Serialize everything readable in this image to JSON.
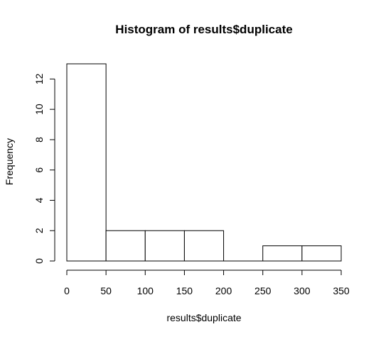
{
  "chart_data": {
    "type": "bar",
    "title": "Histogram of results$duplicate",
    "xlabel": "results$duplicate",
    "ylabel": "Frequency",
    "bins": [
      {
        "start": 0,
        "end": 50,
        "count": 13
      },
      {
        "start": 50,
        "end": 100,
        "count": 2
      },
      {
        "start": 100,
        "end": 150,
        "count": 2
      },
      {
        "start": 150,
        "end": 200,
        "count": 2
      },
      {
        "start": 200,
        "end": 250,
        "count": 0
      },
      {
        "start": 250,
        "end": 300,
        "count": 1
      },
      {
        "start": 300,
        "end": 350,
        "count": 1
      }
    ],
    "xlim": [
      0,
      350
    ],
    "ylim": [
      0,
      13
    ],
    "x_ticks": [
      "0",
      "50",
      "100",
      "150",
      "200",
      "250",
      "300",
      "350"
    ],
    "y_ticks": [
      "0",
      "2",
      "4",
      "6",
      "8",
      "10",
      "12"
    ],
    "grid": false,
    "colors": {
      "bar_fill": "#ffffff",
      "bar_stroke": "#000000"
    }
  }
}
